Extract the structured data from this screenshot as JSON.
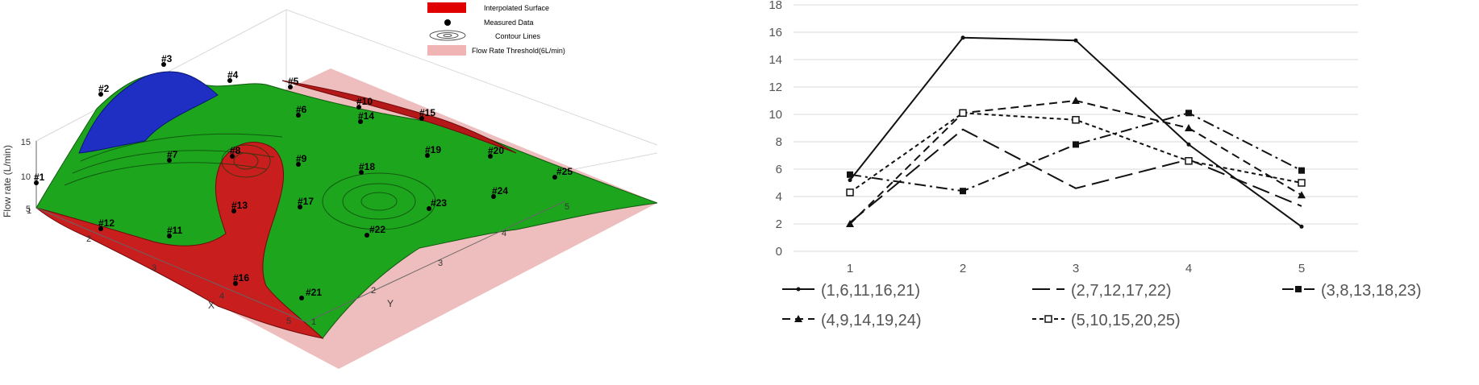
{
  "surface_plot": {
    "zlabel": "Flow rate (L/min)",
    "xlabel": "X",
    "ylabel": "Y",
    "z_ticks": [
      "5",
      "10",
      "15"
    ],
    "x_ticks": [
      "1",
      "2",
      "3",
      "4",
      "5"
    ],
    "y_ticks": [
      "1",
      "2",
      "3",
      "4",
      "5"
    ],
    "legend": [
      {
        "label": "Interpolated Surface",
        "color": "#e00000"
      },
      {
        "label": "Measured Data",
        "color": "#000000"
      },
      {
        "label": "Contour Lines",
        "color": "#555555"
      },
      {
        "label": "Flow Rate Threshold(6L/min)",
        "color": "#f0b4b4"
      }
    ],
    "point_labels": [
      "#1",
      "#2",
      "#3",
      "#4",
      "#5",
      "#6",
      "#7",
      "#8",
      "#9",
      "#10",
      "#11",
      "#12",
      "#13",
      "#14",
      "#15",
      "#16",
      "#17",
      "#18",
      "#19",
      "#20",
      "#21",
      "#22",
      "#23",
      "#24",
      "#25"
    ],
    "colors": {
      "above": "#19a319",
      "below": "#c81e1e",
      "high": "#1f2fc4",
      "threshold": "#c98888"
    }
  },
  "chart_data": {
    "type": "line",
    "categories": [
      "1",
      "2",
      "3",
      "4",
      "5"
    ],
    "ylim": [
      0,
      18
    ],
    "yticks": [
      "0",
      "2",
      "4",
      "6",
      "8",
      "10",
      "12",
      "14",
      "16",
      "18"
    ],
    "series": [
      {
        "name": "(1,6,11,16,21)",
        "values": [
          5.2,
          15.6,
          15.4,
          7.8,
          1.8
        ],
        "dash": "",
        "marker": "dot"
      },
      {
        "name": "(2,7,12,17,22)",
        "values": [
          2.1,
          8.9,
          4.6,
          6.7,
          3.3
        ],
        "dash": "22,8",
        "marker": "none"
      },
      {
        "name": "(3,8,13,18,23)",
        "values": [
          5.6,
          4.4,
          7.8,
          10.1,
          5.9
        ],
        "dash": "14,5,3,5",
        "marker": "square-filled"
      },
      {
        "name": "(4,9,14,19,24)",
        "values": [
          2.0,
          10.1,
          11.0,
          9.0,
          4.1
        ],
        "dash": "10,6",
        "marker": "triangle"
      },
      {
        "name": "(5,10,15,20,25)",
        "values": [
          4.3,
          10.1,
          9.6,
          6.6,
          5.0
        ],
        "dash": "5,4",
        "marker": "square-open"
      }
    ]
  }
}
